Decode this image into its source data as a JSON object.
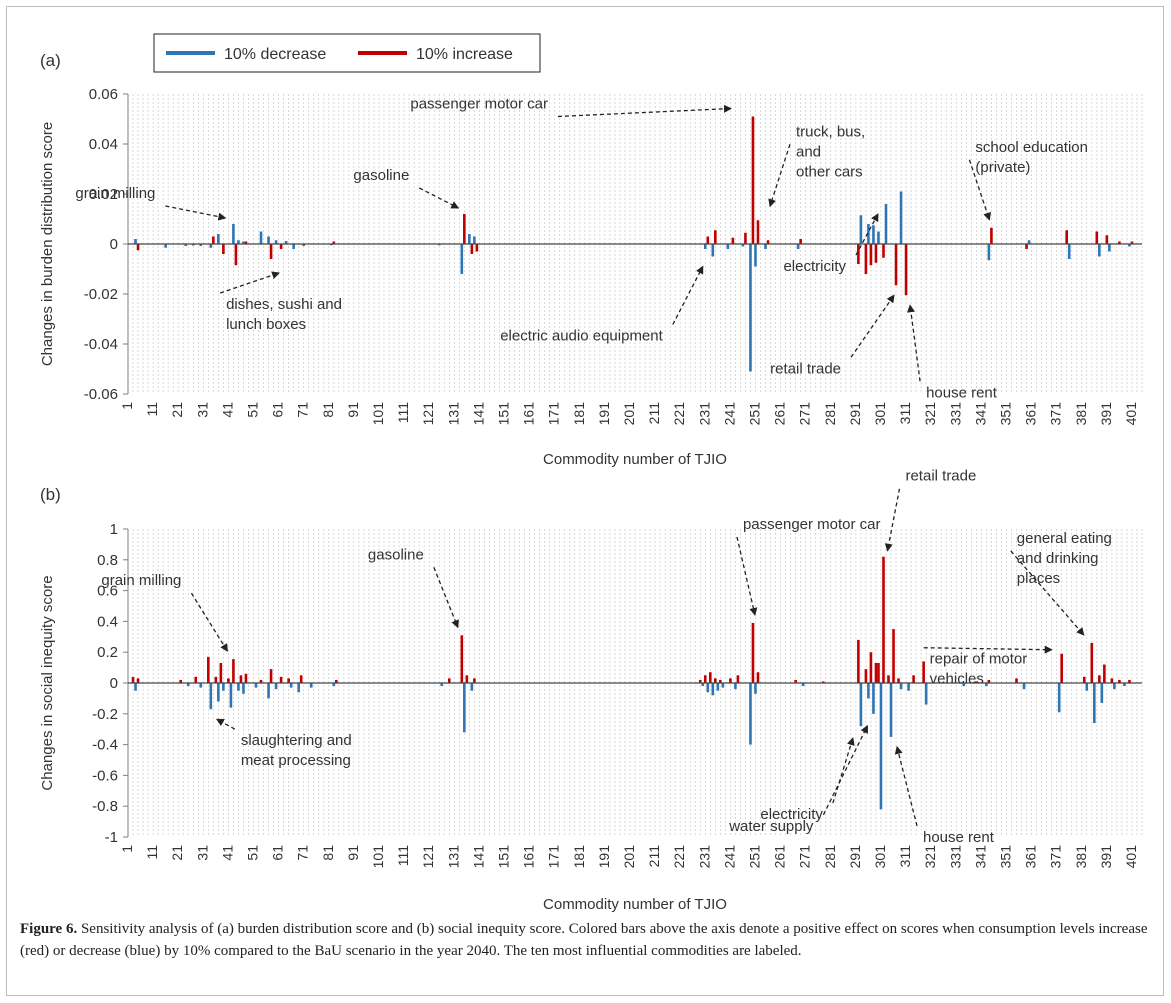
{
  "colors": {
    "decrease": "#2e75b6",
    "increase": "#c00000",
    "grid": "#c9c9c9",
    "axis": "#7f7f7f",
    "text": "#333333"
  },
  "legend": {
    "decrease_label": "10% decrease",
    "increase_label": "10% increase"
  },
  "caption": {
    "bold": "Figure 6.",
    "text": " Sensitivity analysis of (a) burden distribution score and (b) social inequity score. Colored bars above the axis denote a positive effect on scores when consumption levels increase (red) or decrease (blue) by 10% compared to the BaU scenario in the year 2040. The ten most influential commodities are labeled."
  },
  "chart_data": [
    {
      "type": "bar",
      "panel_label": "(a)",
      "xlabel": "Commodity number of TJIO",
      "ylabel": "Changes in burden distribution score",
      "ylim": [
        -0.06,
        0.06
      ],
      "yticks": [
        -0.06,
        -0.04,
        -0.02,
        0,
        0.02,
        0.04,
        0.06
      ],
      "ytick_labels": [
        "-0.06",
        "-0.04",
        "-0.02",
        "0",
        "0.02",
        "0.04",
        "0.06"
      ],
      "xlim": [
        1,
        405
      ],
      "xticks": [
        1,
        11,
        21,
        31,
        41,
        51,
        61,
        71,
        81,
        91,
        101,
        111,
        121,
        131,
        141,
        151,
        161,
        171,
        181,
        191,
        201,
        211,
        221,
        231,
        241,
        251,
        261,
        271,
        281,
        291,
        301,
        311,
        321,
        331,
        341,
        351,
        361,
        371,
        381,
        391,
        401
      ],
      "grid": "vertical dashed",
      "legend_position": "top-left",
      "series": [
        {
          "name": "10% decrease",
          "x": [
            4,
            16,
            24,
            27,
            30,
            34,
            37,
            43,
            45,
            47,
            54,
            57,
            60,
            64,
            67,
            71,
            82,
            125,
            134,
            137,
            139,
            231,
            234,
            240,
            246,
            249,
            251,
            255,
            268,
            293,
            296,
            298,
            300,
            303,
            309,
            344,
            360,
            376,
            388,
            392,
            400
          ],
          "values": [
            0.002,
            -0.0015,
            -0.0008,
            -0.0006,
            -0.0008,
            -0.0015,
            0.004,
            0.008,
            0.0015,
            0.001,
            0.005,
            0.003,
            0.0015,
            0.0012,
            -0.002,
            -0.0008,
            -0.0005,
            -0.0005,
            -0.012,
            0.004,
            0.003,
            -0.002,
            -0.005,
            -0.002,
            -0.001,
            -0.051,
            -0.009,
            -0.002,
            -0.002,
            0.0115,
            0.008,
            0.0075,
            0.005,
            0.016,
            0.021,
            -0.0065,
            0.0015,
            -0.006,
            -0.005,
            -0.003,
            -0.001
          ]
        },
        {
          "name": "10% increase",
          "x": [
            5,
            35,
            39,
            44,
            48,
            58,
            62,
            83,
            135,
            138,
            140,
            232,
            235,
            242,
            247,
            250,
            252,
            256,
            269,
            292,
            295,
            297,
            299,
            302,
            307,
            311,
            345,
            359,
            375,
            387,
            391,
            396,
            401
          ],
          "values": [
            -0.0025,
            0.003,
            -0.004,
            -0.0085,
            0.001,
            -0.006,
            -0.002,
            0.001,
            0.012,
            -0.004,
            -0.003,
            0.003,
            0.0055,
            0.0025,
            0.0045,
            0.051,
            0.0095,
            0.0015,
            0.002,
            -0.008,
            -0.012,
            -0.0085,
            -0.0075,
            -0.0055,
            -0.0165,
            -0.0205,
            0.0065,
            -0.002,
            0.0055,
            0.005,
            0.0035,
            0.001,
            0.001
          ]
        }
      ],
      "annotations": [
        {
          "text": [
            "passenger motor car"
          ],
          "x": 250,
          "y": 0.051
        },
        {
          "text": [
            "truck, bus,",
            "and",
            "other cars"
          ],
          "x": 252,
          "y": 0.0095
        },
        {
          "text": [
            "gasoline"
          ],
          "x": 135,
          "y": 0.012
        },
        {
          "text": [
            "grain milling"
          ],
          "x": 43,
          "y": 0.008
        },
        {
          "text": [
            "school education",
            "(private)"
          ],
          "x": 345,
          "y": 0.0065
        },
        {
          "text": [
            "dishes, sushi and",
            "lunch boxes"
          ],
          "x": 58,
          "y": -0.006
        },
        {
          "text": [
            "electric audio equipment"
          ],
          "x": 234,
          "y": -0.005
        },
        {
          "text": [
            "electricity"
          ],
          "x": 303,
          "y": 0.016
        },
        {
          "text": [
            "retail trade"
          ],
          "x": 307,
          "y": -0.0165
        },
        {
          "text": [
            "house rent"
          ],
          "x": 311,
          "y": -0.0205
        }
      ]
    },
    {
      "type": "bar",
      "panel_label": "(b)",
      "xlabel": "Commodity number of TJIO",
      "ylabel": "Changes in social inequity score",
      "ylim": [
        -1,
        1
      ],
      "yticks": [
        -1,
        -0.8,
        -0.6,
        -0.4,
        -0.2,
        0,
        0.2,
        0.4,
        0.6,
        0.8,
        1
      ],
      "ytick_labels": [
        "-1",
        "-0.8",
        "-0.6",
        "-0.4",
        "-0.2",
        "0",
        "0.2",
        "0.4",
        "0.6",
        "0.8",
        "1"
      ],
      "xlim": [
        1,
        405
      ],
      "xticks": [
        1,
        11,
        21,
        31,
        41,
        51,
        61,
        71,
        81,
        91,
        101,
        111,
        121,
        131,
        141,
        151,
        161,
        171,
        181,
        191,
        201,
        211,
        221,
        231,
        241,
        251,
        261,
        271,
        281,
        291,
        301,
        311,
        321,
        331,
        341,
        351,
        361,
        371,
        381,
        391,
        401
      ],
      "grid": "vertical dashed",
      "series": [
        {
          "name": "10% decrease",
          "x": [
            4,
            25,
            30,
            34,
            37,
            39,
            42,
            45,
            47,
            52,
            57,
            60,
            66,
            69,
            74,
            83,
            126,
            135,
            138,
            230,
            232,
            234,
            236,
            238,
            243,
            249,
            251,
            270,
            293,
            296,
            298,
            301,
            305,
            309,
            312,
            319,
            334,
            343,
            358,
            372,
            383,
            386,
            389,
            394,
            398
          ],
          "values": [
            -0.05,
            -0.02,
            -0.03,
            -0.17,
            -0.12,
            -0.05,
            -0.16,
            -0.05,
            -0.07,
            -0.03,
            -0.1,
            -0.04,
            -0.03,
            -0.06,
            -0.03,
            -0.02,
            -0.02,
            -0.32,
            -0.05,
            -0.02,
            -0.06,
            -0.08,
            -0.05,
            -0.03,
            -0.04,
            -0.4,
            -0.07,
            -0.02,
            -0.28,
            -0.1,
            -0.2,
            -0.82,
            -0.35,
            -0.04,
            -0.05,
            -0.14,
            -0.02,
            -0.02,
            -0.04,
            -0.19,
            -0.05,
            -0.26,
            -0.13,
            -0.04,
            -0.02
          ]
        },
        {
          "name": "10% increase",
          "x": [
            3,
            5,
            22,
            28,
            33,
            36,
            38,
            41,
            43,
            46,
            48,
            54,
            58,
            62,
            65,
            70,
            84,
            129,
            134,
            136,
            139,
            229,
            231,
            233,
            235,
            237,
            241,
            244,
            250,
            252,
            267,
            278,
            292,
            295,
            297,
            299,
            300,
            302,
            304,
            306,
            308,
            314,
            318,
            339,
            344,
            355,
            373,
            382,
            385,
            388,
            390,
            393,
            396,
            400
          ],
          "values": [
            0.04,
            0.03,
            0.02,
            0.04,
            0.17,
            0.04,
            0.13,
            0.03,
            0.155,
            0.05,
            0.06,
            0.02,
            0.09,
            0.04,
            0.03,
            0.05,
            0.02,
            0.03,
            0.31,
            0.05,
            0.03,
            0.02,
            0.05,
            0.07,
            0.03,
            0.02,
            0.03,
            0.05,
            0.39,
            0.07,
            0.02,
            0.01,
            0.28,
            0.09,
            0.2,
            0.13,
            0.13,
            0.82,
            0.05,
            0.35,
            0.03,
            0.05,
            0.14,
            0.01,
            0.02,
            0.03,
            0.19,
            0.04,
            0.26,
            0.05,
            0.12,
            0.03,
            0.02,
            0.02
          ]
        }
      ],
      "annotations": [
        {
          "text": [
            "grain milling"
          ],
          "x": 43,
          "y": 0.155
        },
        {
          "text": [
            "slaughtering and",
            "meat processing"
          ],
          "x": 34,
          "y": -0.17
        },
        {
          "text": [
            "gasoline"
          ],
          "x": 134,
          "y": 0.31
        },
        {
          "text": [
            "passenger motor car"
          ],
          "x": 250,
          "y": 0.39
        },
        {
          "text": [
            "retail trade"
          ],
          "x": 302,
          "y": 0.82
        },
        {
          "text": [
            "general eating",
            "and drinking",
            "places"
          ],
          "x": 385,
          "y": 0.26
        },
        {
          "text": [
            "repair of motor",
            "vehicles"
          ],
          "x": 373,
          "y": 0.19
        },
        {
          "text": [
            "electricity"
          ],
          "x": 293,
          "y": -0.28
        },
        {
          "text": [
            "water supply"
          ],
          "x": 298,
          "y": -0.2
        },
        {
          "text": [
            "house rent"
          ],
          "x": 305,
          "y": -0.35
        }
      ]
    }
  ]
}
